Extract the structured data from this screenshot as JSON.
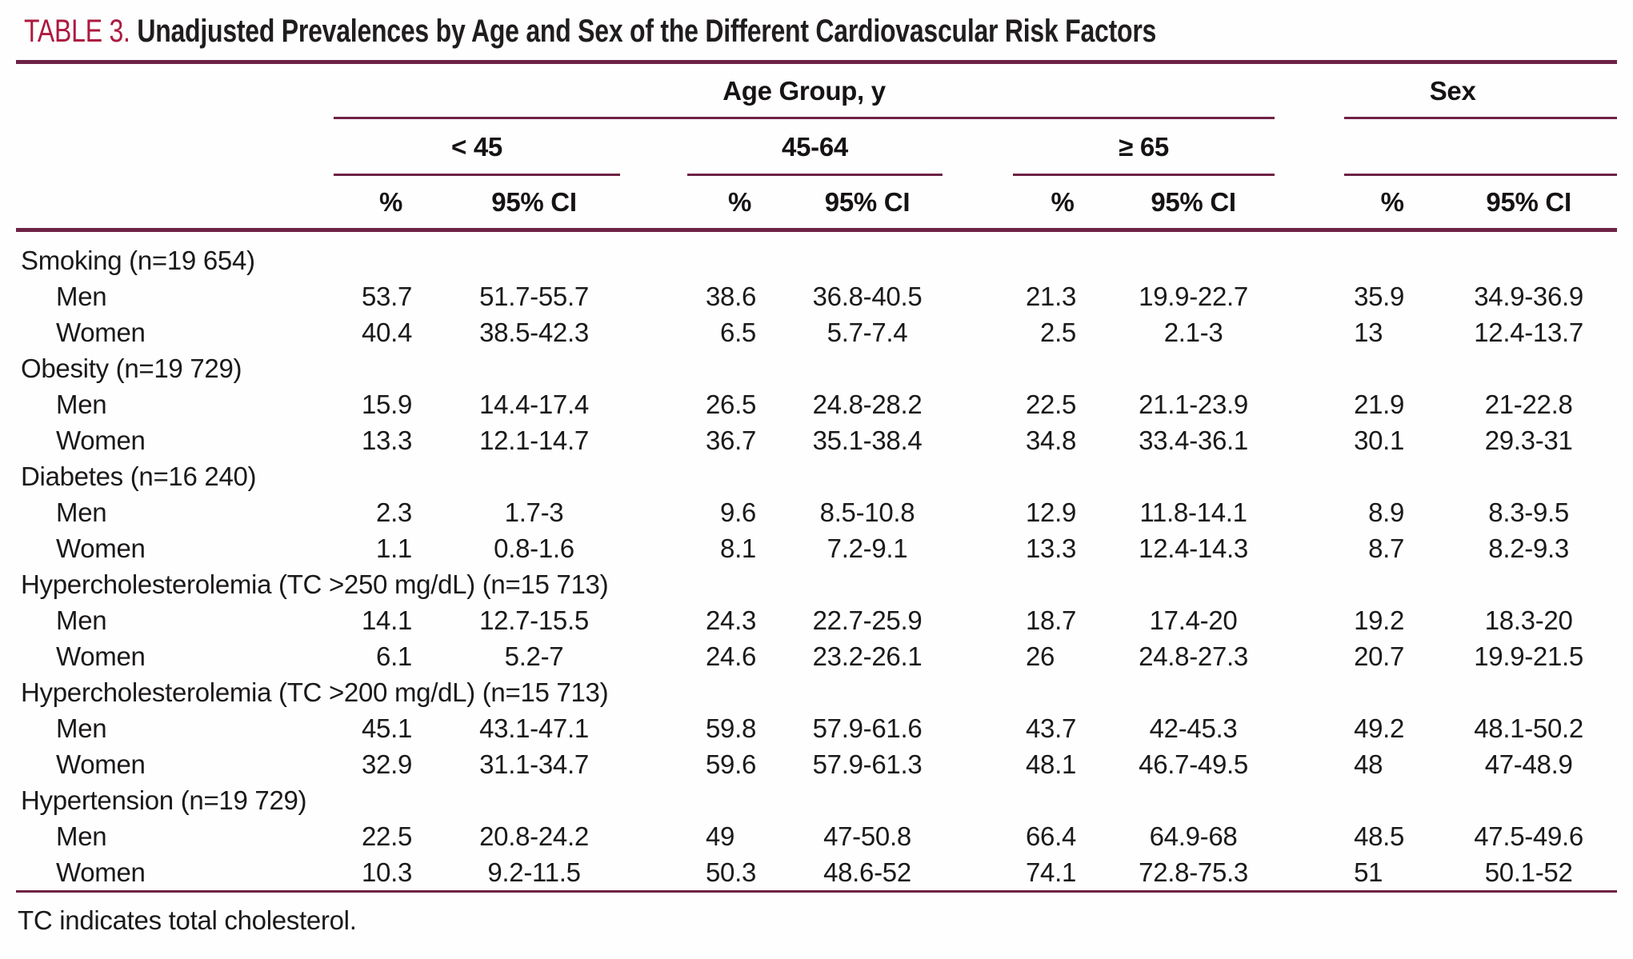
{
  "title": {
    "label": "TABLE 3.",
    "text": "Unadjusted Prevalences by Age and Sex of the Different Cardiovascular Risk Factors"
  },
  "colors": {
    "accent": "#AC1A40",
    "rule": "#6E2245",
    "text": "#1b1919"
  },
  "header": {
    "group_age": "Age Group, y",
    "group_sex": "Sex",
    "age_groups": [
      "< 45",
      "45-64",
      "≥ 65"
    ],
    "pct_label": "%",
    "ci_label": "95% CI"
  },
  "rows": [
    {
      "type": "category",
      "label": "Smoking (n=19 654)"
    },
    {
      "type": "data",
      "label": "Men",
      "values": [
        "53.7",
        "51.7-55.7",
        "38.6",
        "36.8-40.5",
        "21.3",
        "19.9-22.7",
        "35.9",
        "34.9-36.9"
      ]
    },
    {
      "type": "data",
      "label": "Women",
      "values": [
        "40.4",
        "38.5-42.3",
        "6.5",
        "5.7-7.4",
        "2.5",
        "2.1-3",
        "13",
        "12.4-13.7"
      ]
    },
    {
      "type": "category",
      "label": "Obesity (n=19 729)"
    },
    {
      "type": "data",
      "label": "Men",
      "values": [
        "15.9",
        "14.4-17.4",
        "26.5",
        "24.8-28.2",
        "22.5",
        "21.1-23.9",
        "21.9",
        "21-22.8"
      ]
    },
    {
      "type": "data",
      "label": "Women",
      "values": [
        "13.3",
        "12.1-14.7",
        "36.7",
        "35.1-38.4",
        "34.8",
        "33.4-36.1",
        "30.1",
        "29.3-31"
      ]
    },
    {
      "type": "category",
      "label": "Diabetes (n=16 240)"
    },
    {
      "type": "data",
      "label": "Men",
      "values": [
        "2.3",
        "1.7-3",
        "9.6",
        "8.5-10.8",
        "12.9",
        "11.8-14.1",
        "8.9",
        "8.3-9.5"
      ]
    },
    {
      "type": "data",
      "label": "Women",
      "values": [
        "1.1",
        "0.8-1.6",
        "8.1",
        "7.2-9.1",
        "13.3",
        "12.4-14.3",
        "8.7",
        "8.2-9.3"
      ]
    },
    {
      "type": "category",
      "label": "Hypercholesterolemia (TC >250 mg/dL) (n=15 713)"
    },
    {
      "type": "data",
      "label": "Men",
      "values": [
        "14.1",
        "12.7-15.5",
        "24.3",
        "22.7-25.9",
        "18.7",
        "17.4-20",
        "19.2",
        "18.3-20"
      ]
    },
    {
      "type": "data",
      "label": "Women",
      "values": [
        "6.1",
        "5.2-7",
        "24.6",
        "23.2-26.1",
        "26",
        "24.8-27.3",
        "20.7",
        "19.9-21.5"
      ]
    },
    {
      "type": "category",
      "label": "Hypercholesterolemia (TC >200 mg/dL) (n=15 713)"
    },
    {
      "type": "data",
      "label": "Men",
      "values": [
        "45.1",
        "43.1-47.1",
        "59.8",
        "57.9-61.6",
        "43.7",
        "42-45.3",
        "49.2",
        "48.1-50.2"
      ]
    },
    {
      "type": "data",
      "label": "Women",
      "values": [
        "32.9",
        "31.1-34.7",
        "59.6",
        "57.9-61.3",
        "48.1",
        "46.7-49.5",
        "48",
        "47-48.9"
      ]
    },
    {
      "type": "category",
      "label": "Hypertension (n=19 729)"
    },
    {
      "type": "data",
      "label": "Men",
      "values": [
        "22.5",
        "20.8-24.2",
        "49",
        "47-50.8",
        "66.4",
        "64.9-68",
        "48.5",
        "47.5-49.6"
      ]
    },
    {
      "type": "data",
      "label": "Women",
      "values": [
        "10.3",
        "9.2-11.5",
        "50.3",
        "48.6-52",
        "74.1",
        "72.8-75.3",
        "51",
        "50.1-52"
      ]
    }
  ],
  "footnote": "TC indicates total cholesterol."
}
